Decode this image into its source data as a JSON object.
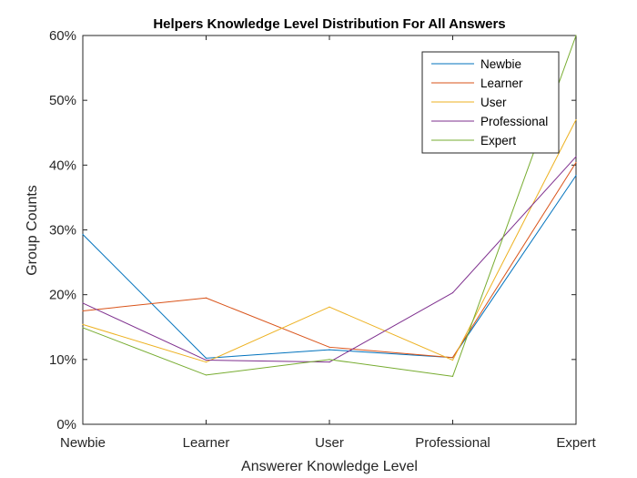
{
  "chart_data": {
    "type": "line",
    "title": "Helpers Knowledge Level Distribution For All Answers",
    "xlabel": "Answerer Knowledge Level",
    "ylabel": "Group Counts",
    "categories": [
      "Newbie",
      "Learner",
      "User",
      "Professional",
      "Expert"
    ],
    "ylim": [
      0,
      60
    ],
    "yticks": [
      0,
      10,
      20,
      30,
      40,
      50,
      60
    ],
    "ytick_labels": [
      "0%",
      "10%",
      "20%",
      "30%",
      "40%",
      "50%",
      "60%"
    ],
    "grid": false,
    "legend_position": "top-right",
    "series": [
      {
        "name": "Newbie",
        "color": "#0072BD",
        "values": [
          29.3,
          10.2,
          11.5,
          10.3,
          38.4
        ]
      },
      {
        "name": "Learner",
        "color": "#D95319",
        "values": [
          17.5,
          19.5,
          11.9,
          10.3,
          40.4
        ]
      },
      {
        "name": "User",
        "color": "#EDB120",
        "values": [
          15.4,
          9.6,
          18.1,
          9.9,
          47.0
        ]
      },
      {
        "name": "Professional",
        "color": "#7E2F8E",
        "values": [
          18.7,
          9.9,
          9.6,
          20.3,
          41.3
        ]
      },
      {
        "name": "Expert",
        "color": "#77AC30",
        "values": [
          14.9,
          7.6,
          10.0,
          7.4,
          60.0
        ]
      }
    ]
  }
}
